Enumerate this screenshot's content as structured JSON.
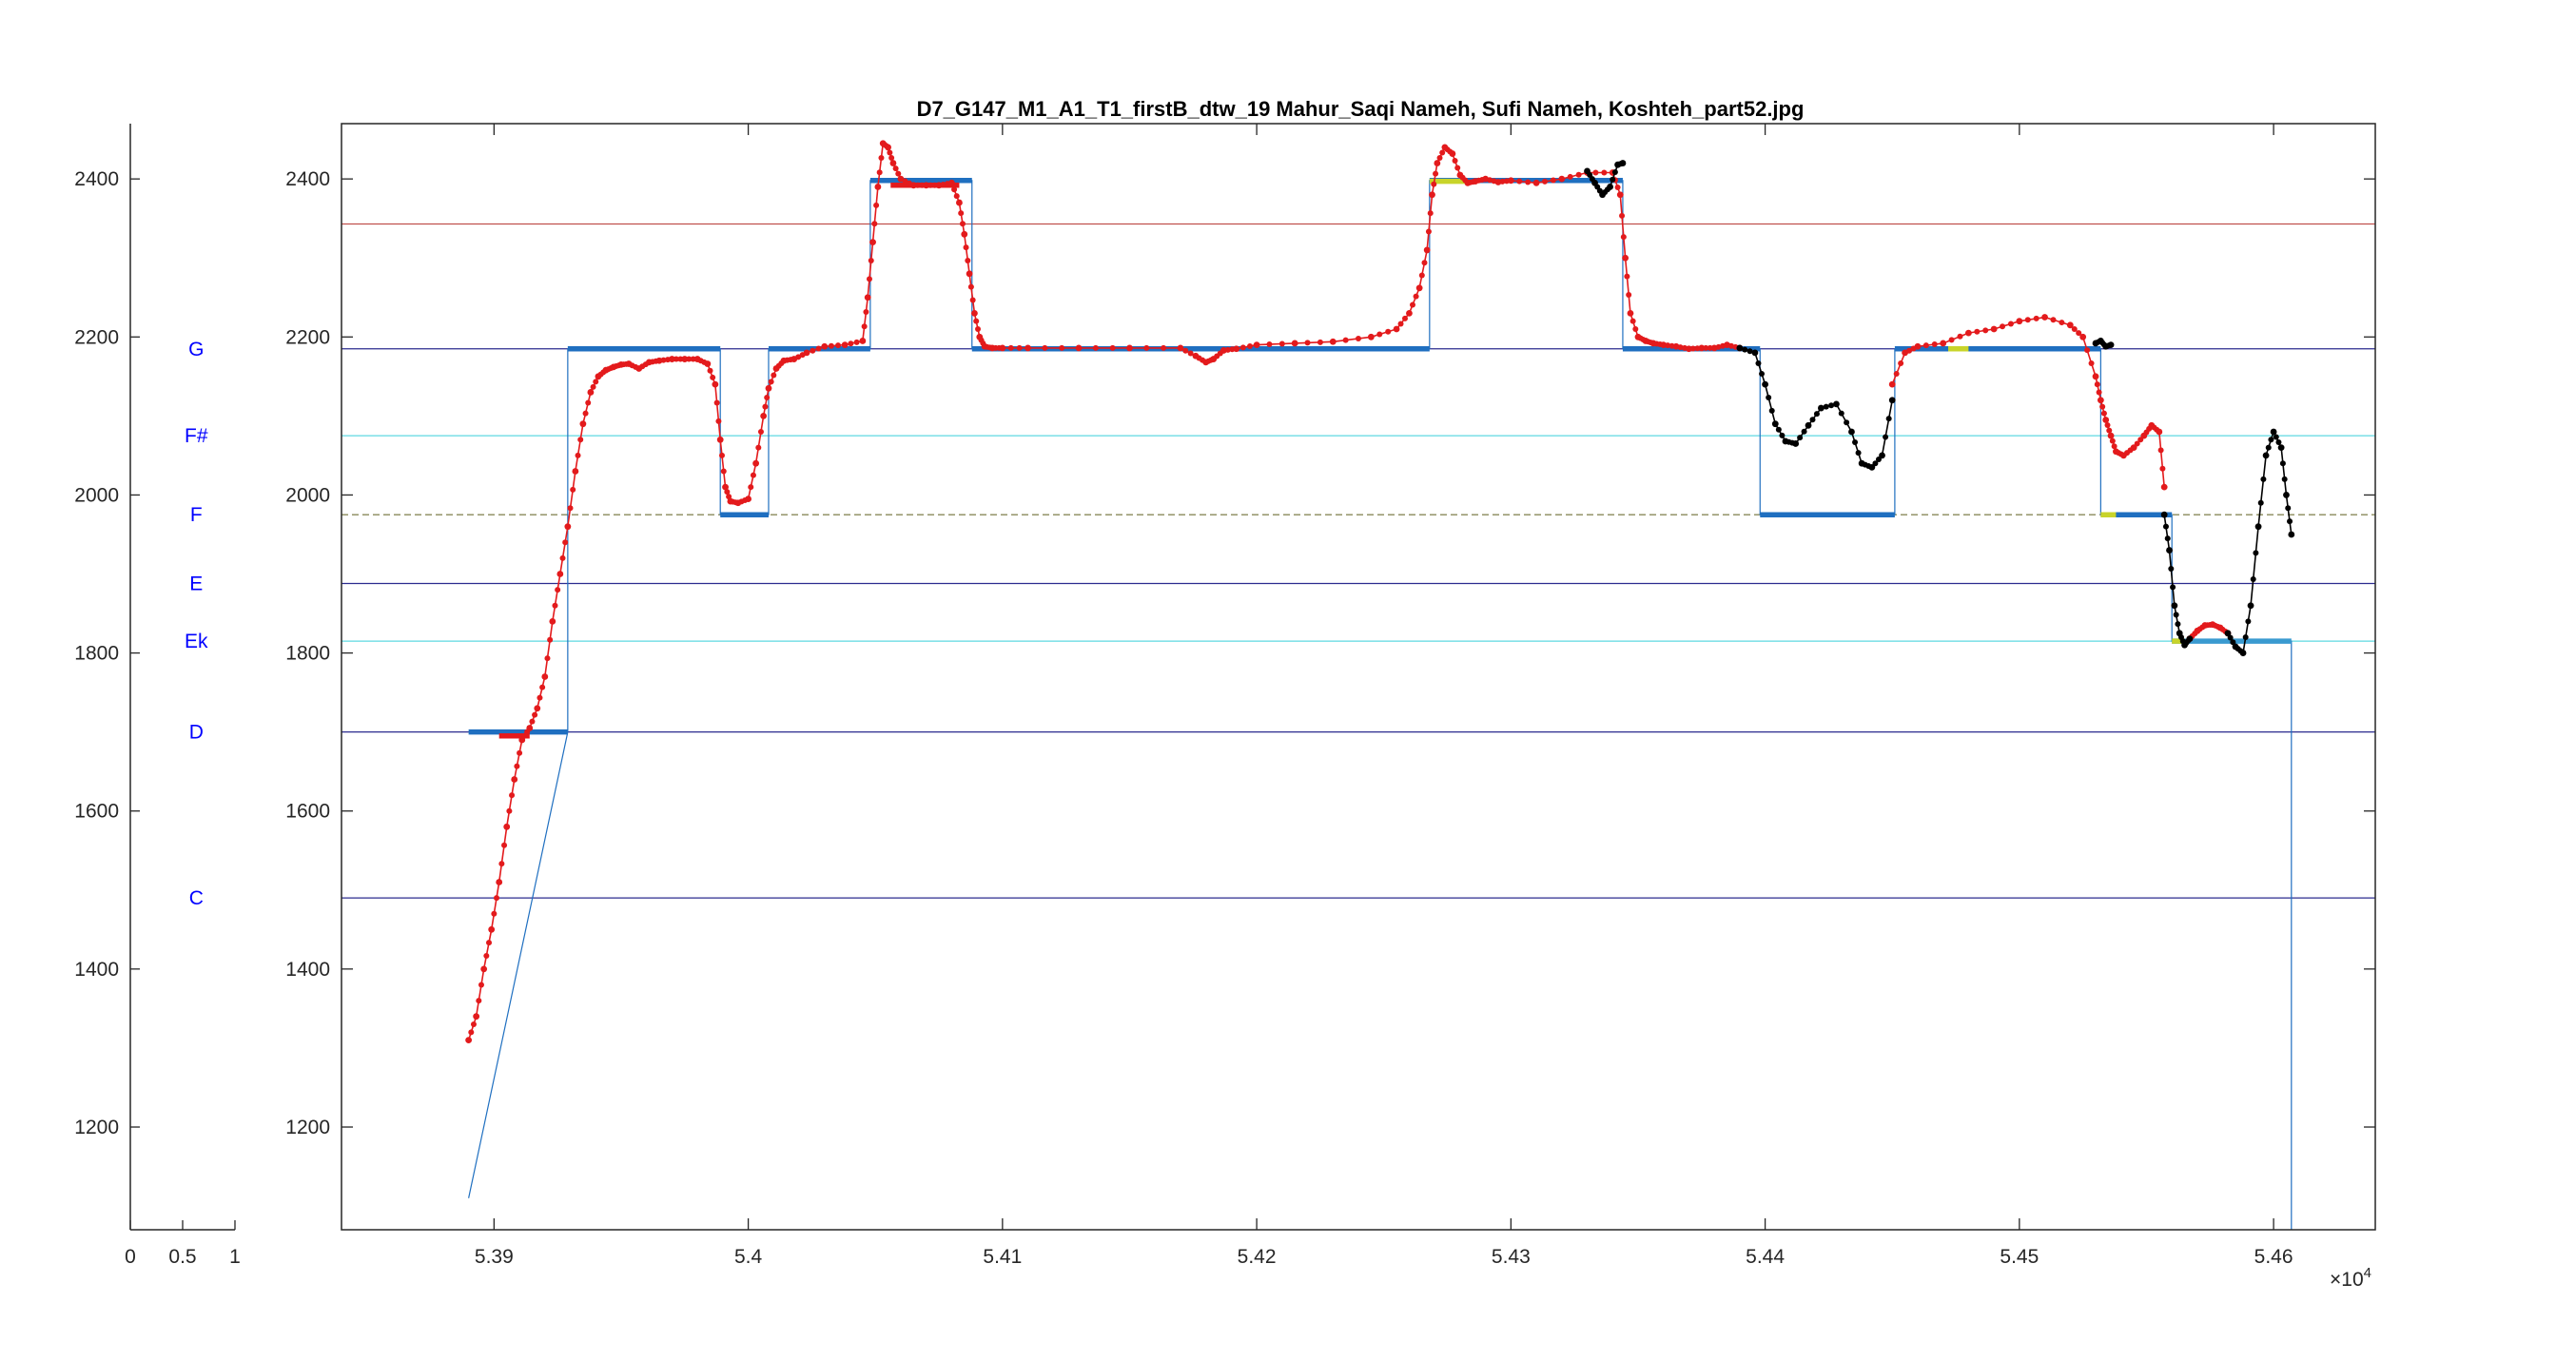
{
  "chart_data": {
    "type": "line",
    "title": "D7_G147_M1_A1_T1_firstB_dtw_19 Mahur_Saqi Nameh, Sufi Nameh, Koshteh_part52.jpg",
    "xlabel": "",
    "ylabel": "",
    "x_exponent_label": "×10",
    "x_exponent_power": "4",
    "xlim": [
      5.384,
      5.464
    ],
    "ylim": [
      1070,
      2470
    ],
    "grid": false,
    "x_ticks": [
      {
        "v": 5.39,
        "label": "5.39"
      },
      {
        "v": 5.4,
        "label": "5.4"
      },
      {
        "v": 5.41,
        "label": "5.41"
      },
      {
        "v": 5.42,
        "label": "5.42"
      },
      {
        "v": 5.43,
        "label": "5.43"
      },
      {
        "v": 5.44,
        "label": "5.44"
      },
      {
        "v": 5.45,
        "label": "5.45"
      },
      {
        "v": 5.46,
        "label": "5.46"
      }
    ],
    "y_ticks": [
      {
        "v": 1200,
        "label": "1200"
      },
      {
        "v": 1400,
        "label": "1400"
      },
      {
        "v": 1600,
        "label": "1600"
      },
      {
        "v": 1800,
        "label": "1800"
      },
      {
        "v": 2000,
        "label": "2000"
      },
      {
        "v": 2200,
        "label": "2200"
      },
      {
        "v": 2400,
        "label": "2400"
      }
    ],
    "note_axis": {
      "xlim": [
        0,
        1
      ],
      "x_ticks": [
        {
          "v": 0,
          "label": "0"
        },
        {
          "v": 0.5,
          "label": "0.5"
        },
        {
          "v": 1,
          "label": "1"
        }
      ],
      "notes": [
        {
          "label": "G",
          "y": 2185
        },
        {
          "label": "F#",
          "y": 2075
        },
        {
          "label": "F",
          "y": 1975
        },
        {
          "label": "E",
          "y": 1888
        },
        {
          "label": "Ek",
          "y": 1815
        },
        {
          "label": "D",
          "y": 1700
        },
        {
          "label": "C",
          "y": 1490
        }
      ]
    },
    "reference_lines": [
      {
        "y": 2343,
        "color": "#c0504d"
      },
      {
        "y": 2185,
        "color": "#2b2b8f"
      },
      {
        "y": 2075,
        "color": "#5fd8e0"
      },
      {
        "y": 1975,
        "color": "#8a8a5a",
        "dashed": true
      },
      {
        "y": 1888,
        "color": "#2b2b8f"
      },
      {
        "y": 1815,
        "color": "#5fd8e0"
      },
      {
        "y": 1700,
        "color": "#2b2b8f"
      },
      {
        "y": 1490,
        "color": "#2b2b8f"
      }
    ],
    "step_series": {
      "name": "",
      "color": "#1f6fc0",
      "x": [
        5.389,
        5.3929,
        5.3929,
        5.3989,
        5.3989,
        5.4008,
        5.4008,
        5.4048,
        5.4048,
        5.4088,
        5.4088,
        5.4268,
        5.4268,
        5.4344,
        5.4344,
        5.4398,
        5.4398,
        5.4451,
        5.4451,
        5.4532,
        5.4532,
        5.456,
        5.456,
        5.4607,
        5.4607
      ],
      "y": [
        1110,
        1700,
        2185,
        2185,
        1975,
        1975,
        2185,
        2185,
        2398,
        2398,
        2185,
        2185,
        2398,
        2398,
        2185,
        2185,
        1975,
        1975,
        2185,
        2185,
        1975,
        1975,
        1815,
        1815,
        1070
      ]
    },
    "segments": [
      {
        "x0": 5.389,
        "x1": 5.3929,
        "y": 1700,
        "color": "#1f6fc0"
      },
      {
        "x0": 5.3929,
        "x1": 5.3989,
        "y": 2185,
        "color": "#1f6fc0"
      },
      {
        "x0": 5.3989,
        "x1": 5.4008,
        "y": 1975,
        "color": "#1f6fc0"
      },
      {
        "x0": 5.4008,
        "x1": 5.4048,
        "y": 2185,
        "color": "#1f6fc0"
      },
      {
        "x0": 5.4048,
        "x1": 5.4088,
        "y": 2398,
        "color": "#1f6fc0"
      },
      {
        "x0": 5.4088,
        "x1": 5.4268,
        "y": 2185,
        "color": "#1f6fc0"
      },
      {
        "x0": 5.4268,
        "x1": 5.4344,
        "y": 2398,
        "color": "#1f6fc0"
      },
      {
        "x0": 5.4344,
        "x1": 5.4398,
        "y": 2185,
        "color": "#1f6fc0"
      },
      {
        "x0": 5.4398,
        "x1": 5.4451,
        "y": 1975,
        "color": "#1f6fc0"
      },
      {
        "x0": 5.4451,
        "x1": 5.4532,
        "y": 2185,
        "color": "#1f6fc0"
      },
      {
        "x0": 5.4532,
        "x1": 5.456,
        "y": 1975,
        "color": "#1f6fc0"
      },
      {
        "x0": 5.456,
        "x1": 5.4607,
        "y": 1815,
        "color": "#3a9ad0"
      },
      {
        "x0": 5.3902,
        "x1": 5.3914,
        "y": 1695,
        "color": "#e31a1c"
      },
      {
        "x0": 5.4056,
        "x1": 5.4083,
        "y": 2392,
        "color": "#e31a1c"
      },
      {
        "x0": 5.4268,
        "x1": 5.4282,
        "y": 2397,
        "color": "#c8d42a"
      },
      {
        "x0": 5.4472,
        "x1": 5.448,
        "y": 2185,
        "color": "#c8d42a"
      },
      {
        "x0": 5.4532,
        "x1": 5.4538,
        "y": 1975,
        "color": "#c8d42a"
      },
      {
        "x0": 5.456,
        "x1": 5.4565,
        "y": 1815,
        "color": "#c8d42a"
      }
    ],
    "series": [
      {
        "name": "",
        "color": "#e31a1c",
        "x": [
          5.389,
          5.3893,
          5.3896,
          5.3899,
          5.3902,
          5.3905,
          5.3908,
          5.3911,
          5.3914,
          5.3917,
          5.392,
          5.3923,
          5.3926,
          5.3929,
          5.3932,
          5.3935,
          5.3938,
          5.3941,
          5.3944,
          5.3947,
          5.395,
          5.3953,
          5.3957,
          5.3961,
          5.3965,
          5.397,
          5.3975,
          5.398,
          5.3984,
          5.3987,
          5.3989,
          5.3991,
          5.3993,
          5.3996,
          5.4,
          5.4003,
          5.4006,
          5.4008,
          5.4011,
          5.4014,
          5.4018,
          5.4023,
          5.403,
          5.4038,
          5.4045,
          5.4047,
          5.4049,
          5.4051,
          5.4053,
          5.4055,
          5.4057,
          5.406,
          5.4065,
          5.407,
          5.4075,
          5.408,
          5.4083,
          5.4085,
          5.4087,
          5.4089,
          5.4091,
          5.4093,
          5.4096,
          5.41,
          5.411,
          5.413,
          5.415,
          5.417,
          5.4176,
          5.418,
          5.4183,
          5.4187,
          5.4192,
          5.42,
          5.4215,
          5.423,
          5.4245,
          5.4255,
          5.426,
          5.4264,
          5.4267,
          5.4269,
          5.4271,
          5.4274,
          5.4277,
          5.428,
          5.4283,
          5.4286,
          5.429,
          5.4295,
          5.43,
          5.431,
          5.432,
          5.433,
          5.434,
          5.4343,
          5.4345,
          5.4347,
          5.435,
          5.4353,
          5.4356,
          5.436,
          5.4365,
          5.437,
          5.4375,
          5.438,
          5.4385,
          5.439
        ],
        "y": [
          1310,
          1340,
          1400,
          1450,
          1510,
          1580,
          1640,
          1690,
          1705,
          1730,
          1770,
          1840,
          1900,
          1960,
          2030,
          2090,
          2130,
          2150,
          2158,
          2162,
          2165,
          2166,
          2160,
          2168,
          2170,
          2172,
          2172,
          2172,
          2166,
          2140,
          2070,
          2010,
          1992,
          1990,
          1995,
          2040,
          2100,
          2135,
          2160,
          2170,
          2172,
          2180,
          2188,
          2190,
          2195,
          2250,
          2320,
          2390,
          2445,
          2440,
          2420,
          2400,
          2392,
          2392,
          2392,
          2395,
          2370,
          2330,
          2280,
          2230,
          2200,
          2188,
          2186,
          2186,
          2186,
          2186,
          2186,
          2186,
          2176,
          2168,
          2172,
          2183,
          2185,
          2190,
          2192,
          2194,
          2200,
          2210,
          2230,
          2262,
          2310,
          2380,
          2420,
          2440,
          2432,
          2405,
          2395,
          2397,
          2400,
          2396,
          2398,
          2395,
          2400,
          2408,
          2408,
          2380,
          2300,
          2230,
          2200,
          2195,
          2192,
          2190,
          2188,
          2185,
          2186,
          2186,
          2190,
          2186
        ]
      },
      {
        "name": "",
        "color": "#e31a1c",
        "x": [
          5.445,
          5.4455,
          5.446,
          5.447,
          5.448,
          5.449,
          5.45,
          5.451,
          5.452,
          5.4525,
          5.453,
          5.4532,
          5.4534,
          5.4536,
          5.4538,
          5.4541,
          5.4545,
          5.4549,
          5.4552,
          5.4555,
          5.4557
        ],
        "y": [
          2140,
          2180,
          2188,
          2192,
          2205,
          2210,
          2220,
          2225,
          2215,
          2200,
          2150,
          2120,
          2095,
          2075,
          2055,
          2050,
          2060,
          2075,
          2088,
          2080,
          2010
        ]
      },
      {
        "name": "",
        "color": "#e31a1c",
        "x": [
          5.4567,
          5.457,
          5.4573,
          5.4576,
          5.4579,
          5.4582
        ],
        "y": [
          1818,
          1828,
          1835,
          1836,
          1832,
          1825
        ]
      },
      {
        "name": "",
        "color": "#000000",
        "x": [
          5.433,
          5.4333,
          5.4336,
          5.4339,
          5.4342,
          5.4344
        ],
        "y": [
          2410,
          2395,
          2380,
          2390,
          2418,
          2420
        ]
      },
      {
        "name": "",
        "color": "#000000",
        "x": [
          5.439,
          5.4396,
          5.44,
          5.4404,
          5.4408,
          5.4412,
          5.4417,
          5.4422,
          5.4428,
          5.4434,
          5.4438,
          5.4442,
          5.4446,
          5.445
        ],
        "y": [
          2186,
          2180,
          2140,
          2090,
          2068,
          2065,
          2088,
          2110,
          2115,
          2080,
          2040,
          2035,
          2050,
          2120
        ]
      },
      {
        "name": "",
        "color": "#000000",
        "x": [
          5.453,
          5.4532,
          5.4534,
          5.4536
        ],
        "y": [
          2192,
          2195,
          2188,
          2190
        ]
      },
      {
        "name": "",
        "color": "#000000",
        "x": [
          5.4557,
          5.4559,
          5.4561,
          5.4563,
          5.4565,
          5.4567
        ],
        "y": [
          1975,
          1930,
          1860,
          1825,
          1810,
          1818
        ]
      },
      {
        "name": "",
        "color": "#000000",
        "x": [
          5.4582,
          5.4585,
          5.4588,
          5.4591,
          5.4594,
          5.4597,
          5.46,
          5.4603,
          5.4605,
          5.4607
        ],
        "y": [
          1825,
          1808,
          1800,
          1860,
          1960,
          2050,
          2080,
          2060,
          2000,
          1950
        ]
      }
    ]
  }
}
